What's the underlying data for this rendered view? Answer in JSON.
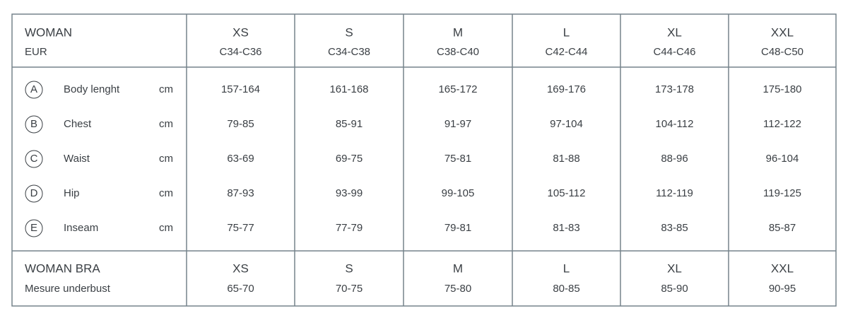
{
  "header": {
    "title": "WOMAN",
    "subtitle": "EUR",
    "sizes": [
      {
        "size": "XS",
        "eur": "C34-C36"
      },
      {
        "size": "S",
        "eur": "C34-C38"
      },
      {
        "size": "M",
        "eur": "C38-C40"
      },
      {
        "size": "L",
        "eur": "C42-C44"
      },
      {
        "size": "XL",
        "eur": "C44-C46"
      },
      {
        "size": "XXL",
        "eur": "C48-C50"
      }
    ]
  },
  "rows": [
    {
      "letter": "A",
      "label": "Body lenght",
      "unit": "cm",
      "values": [
        "157-164",
        "161-168",
        "165-172",
        "169-176",
        "173-178",
        "175-180"
      ]
    },
    {
      "letter": "B",
      "label": "Chest",
      "unit": "cm",
      "values": [
        "79-85",
        "85-91",
        "91-97",
        "97-104",
        "104-112",
        "112-122"
      ]
    },
    {
      "letter": "C",
      "label": "Waist",
      "unit": "cm",
      "values": [
        "63-69",
        "69-75",
        "75-81",
        "81-88",
        "88-96",
        "96-104"
      ]
    },
    {
      "letter": "D",
      "label": "Hip",
      "unit": "cm",
      "values": [
        "87-93",
        "93-99",
        "99-105",
        "105-112",
        "112-119",
        "119-125"
      ]
    },
    {
      "letter": "E",
      "label": "Inseam",
      "unit": "cm",
      "values": [
        "75-77",
        "77-79",
        "79-81",
        "81-83",
        "83-85",
        "85-87"
      ]
    }
  ],
  "bra": {
    "title": "WOMAN BRA",
    "subtitle": "Mesure underbust",
    "sizes": [
      "XS",
      "S",
      "M",
      "L",
      "XL",
      "XXL"
    ],
    "values": [
      "65-70",
      "70-75",
      "75-80",
      "80-85",
      "85-90",
      "90-95"
    ]
  }
}
